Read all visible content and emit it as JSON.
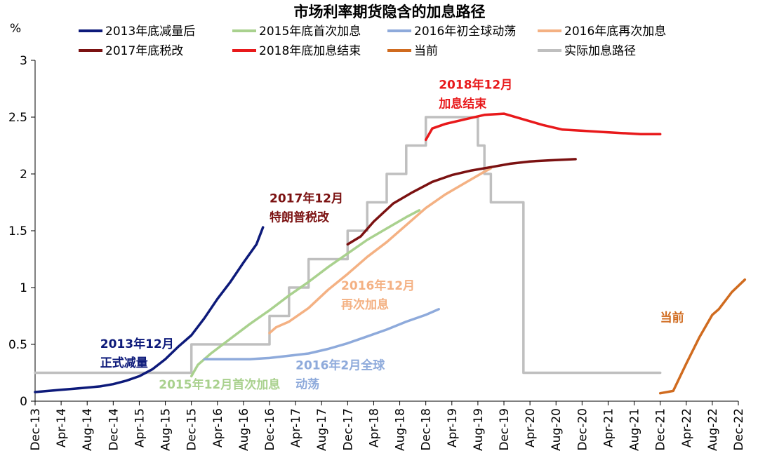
{
  "chart_data": {
    "type": "line",
    "title": "市场利率期货隐含的加息路径",
    "ylabel": "%",
    "ylim": [
      0,
      3
    ],
    "yticks": [
      "0",
      "0.5",
      "1",
      "1.5",
      "2",
      "2.5",
      "3"
    ],
    "xlim": [
      "Dec-13",
      "Dec-22"
    ],
    "xticks": [
      "Dec-13",
      "Apr-14",
      "Aug-14",
      "Dec-14",
      "Apr-15",
      "Aug-15",
      "Dec-15",
      "Apr-16",
      "Aug-16",
      "Dec-16",
      "Apr-17",
      "Aug-17",
      "Dec-17",
      "Apr-18",
      "Aug-18",
      "Dec-18",
      "Apr-19",
      "Aug-19",
      "Dec-19",
      "Apr-20",
      "Aug-20",
      "Dec-20",
      "Apr-21",
      "Aug-21",
      "Dec-21",
      "Apr-22",
      "Aug-22",
      "Dec-22"
    ],
    "grid": false,
    "legend_position": "top",
    "series": [
      {
        "name": "2013年底减量后",
        "color": "#0d1a7a",
        "step": false,
        "points": [
          [
            "2013-12",
            0.08
          ],
          [
            "2014-02",
            0.09
          ],
          [
            "2014-04",
            0.1
          ],
          [
            "2014-06",
            0.11
          ],
          [
            "2014-08",
            0.12
          ],
          [
            "2014-10",
            0.13
          ],
          [
            "2014-12",
            0.15
          ],
          [
            "2015-02",
            0.18
          ],
          [
            "2015-04",
            0.22
          ],
          [
            "2015-06",
            0.28
          ],
          [
            "2015-08",
            0.37
          ],
          [
            "2015-10",
            0.48
          ],
          [
            "2015-12",
            0.58
          ],
          [
            "2016-02",
            0.73
          ],
          [
            "2016-04",
            0.9
          ],
          [
            "2016-06",
            1.05
          ],
          [
            "2016-08",
            1.22
          ],
          [
            "2016-10",
            1.38
          ],
          [
            "2016-11",
            1.53
          ]
        ]
      },
      {
        "name": "2015年底首次加息",
        "color": "#a9d18e",
        "step": false,
        "points": [
          [
            "2015-12",
            0.22
          ],
          [
            "2016-01",
            0.32
          ],
          [
            "2016-03",
            0.42
          ],
          [
            "2016-06",
            0.55
          ],
          [
            "2016-09",
            0.68
          ],
          [
            "2016-12",
            0.8
          ],
          [
            "2017-03",
            0.93
          ],
          [
            "2017-06",
            1.05
          ],
          [
            "2017-09",
            1.18
          ],
          [
            "2017-12",
            1.3
          ],
          [
            "2018-03",
            1.42
          ],
          [
            "2018-06",
            1.52
          ],
          [
            "2018-09",
            1.62
          ],
          [
            "2018-11",
            1.68
          ]
        ]
      },
      {
        "name": "2016年初全球动荡",
        "color": "#8eaadb",
        "step": false,
        "points": [
          [
            "2016-02",
            0.37
          ],
          [
            "2016-06",
            0.37
          ],
          [
            "2016-09",
            0.37
          ],
          [
            "2016-12",
            0.38
          ],
          [
            "2017-03",
            0.4
          ],
          [
            "2017-06",
            0.42
          ],
          [
            "2017-09",
            0.46
          ],
          [
            "2017-12",
            0.51
          ],
          [
            "2018-03",
            0.57
          ],
          [
            "2018-06",
            0.63
          ],
          [
            "2018-09",
            0.7
          ],
          [
            "2018-12",
            0.76
          ],
          [
            "2019-02",
            0.81
          ]
        ]
      },
      {
        "name": "2016年底再次加息",
        "color": "#f4b183",
        "step": false,
        "points": [
          [
            "2016-12",
            0.6
          ],
          [
            "2017-01",
            0.65
          ],
          [
            "2017-03",
            0.7
          ],
          [
            "2017-06",
            0.82
          ],
          [
            "2017-09",
            0.98
          ],
          [
            "2017-12",
            1.12
          ],
          [
            "2018-03",
            1.27
          ],
          [
            "2018-06",
            1.4
          ],
          [
            "2018-09",
            1.55
          ],
          [
            "2018-12",
            1.7
          ],
          [
            "2019-03",
            1.82
          ],
          [
            "2019-06",
            1.92
          ],
          [
            "2019-09",
            2.02
          ],
          [
            "2019-10",
            2.05
          ]
        ]
      },
      {
        "name": "2017年底税改",
        "color": "#7b1111",
        "step": false,
        "points": [
          [
            "2017-12",
            1.38
          ],
          [
            "2018-02",
            1.45
          ],
          [
            "2018-04",
            1.58
          ],
          [
            "2018-07",
            1.74
          ],
          [
            "2018-10",
            1.84
          ],
          [
            "2019-01",
            1.93
          ],
          [
            "2019-04",
            1.99
          ],
          [
            "2019-07",
            2.03
          ],
          [
            "2019-10",
            2.06
          ],
          [
            "2020-01",
            2.09
          ],
          [
            "2020-04",
            2.11
          ],
          [
            "2020-07",
            2.12
          ],
          [
            "2020-11",
            2.13
          ]
        ]
      },
      {
        "name": "2018年底加息结束",
        "color": "#e8191b",
        "step": false,
        "points": [
          [
            "2018-12",
            2.3
          ],
          [
            "2019-01",
            2.4
          ],
          [
            "2019-03",
            2.44
          ],
          [
            "2019-06",
            2.48
          ],
          [
            "2019-09",
            2.52
          ],
          [
            "2019-12",
            2.53
          ],
          [
            "2020-03",
            2.48
          ],
          [
            "2020-06",
            2.43
          ],
          [
            "2020-09",
            2.39
          ],
          [
            "2020-12",
            2.38
          ],
          [
            "2021-03",
            2.37
          ],
          [
            "2021-06",
            2.36
          ],
          [
            "2021-09",
            2.35
          ],
          [
            "2021-12",
            2.35
          ]
        ]
      },
      {
        "name": "当前",
        "color": "#d06b1f",
        "step": false,
        "points": [
          [
            "2021-12",
            0.07
          ],
          [
            "2022-02",
            0.09
          ],
          [
            "2022-04",
            0.33
          ],
          [
            "2022-06",
            0.56
          ],
          [
            "2022-08",
            0.76
          ],
          [
            "2022-09",
            0.81
          ],
          [
            "2022-11",
            0.96
          ],
          [
            "2023-01",
            1.07
          ]
        ]
      },
      {
        "name": "实际加息路径",
        "color": "#bfbfbf",
        "step": true,
        "points": [
          [
            "2013-12",
            0.25
          ],
          [
            "2015-12",
            0.5
          ],
          [
            "2016-12",
            0.75
          ],
          [
            "2017-03",
            1.0
          ],
          [
            "2017-06",
            1.25
          ],
          [
            "2017-12",
            1.5
          ],
          [
            "2018-03",
            1.75
          ],
          [
            "2018-06",
            2.0
          ],
          [
            "2018-09",
            2.25
          ],
          [
            "2018-12",
            2.5
          ],
          [
            "2019-08",
            2.25
          ],
          [
            "2019-09",
            2.0
          ],
          [
            "2019-10",
            1.75
          ],
          [
            "2020-03",
            0.25
          ],
          [
            "2021-12",
            0.25
          ]
        ]
      }
    ],
    "annotations": [
      {
        "lines": [
          "2013年12月",
          "正式减量"
        ],
        "color": "#0d1a7a",
        "anchor_date": "2014-10",
        "anchor_value": 0.47
      },
      {
        "lines": [
          "2015年12月首次加息"
        ],
        "color": "#a9d18e",
        "anchor_date": "2015-07",
        "anchor_value": 0.11
      },
      {
        "lines": [
          "2016年2月全球",
          "动荡"
        ],
        "color": "#8eaadb",
        "anchor_date": "2017-04",
        "anchor_value": 0.28
      },
      {
        "lines": [
          "2016年12月",
          "再次加息"
        ],
        "color": "#f4b183",
        "anchor_date": "2017-11",
        "anchor_value": 0.98
      },
      {
        "lines": [
          "2017年12月",
          "特朗普税改"
        ],
        "color": "#7b1111",
        "anchor_date": "2016-12",
        "anchor_value": 1.75
      },
      {
        "lines": [
          "2018年12月",
          "加息结束"
        ],
        "color": "#e8191b",
        "anchor_date": "2019-02",
        "anchor_value": 2.75
      },
      {
        "lines": [
          "当前"
        ],
        "color": "#d06b1f",
        "anchor_date": "2021-12",
        "anchor_value": 0.7
      }
    ]
  }
}
